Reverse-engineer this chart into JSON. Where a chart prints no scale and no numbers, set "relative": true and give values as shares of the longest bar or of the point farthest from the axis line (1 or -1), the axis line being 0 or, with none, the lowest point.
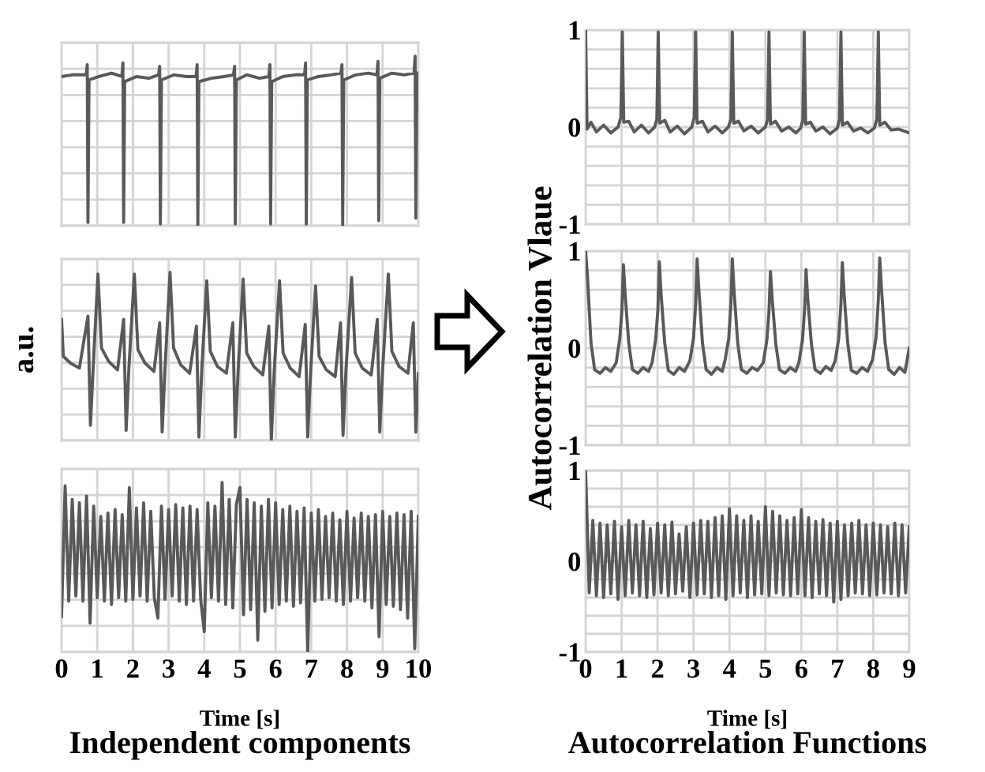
{
  "chart_data": [
    {
      "type": "line",
      "relative": true,
      "color": "#595959",
      "xlim": [
        0,
        10
      ],
      "xticks": [
        0,
        1,
        2,
        3,
        4,
        5,
        6,
        7,
        8,
        9,
        10
      ],
      "grid": true,
      "tick_labels": false,
      "x": [
        0,
        0.3,
        0.69,
        0.72,
        0.74,
        0.77,
        1.05,
        1.4,
        1.69,
        1.72,
        1.74,
        1.77,
        2.1,
        2.45,
        2.72,
        2.75,
        2.77,
        2.8,
        3.15,
        3.5,
        3.77,
        3.8,
        3.82,
        3.85,
        4.2,
        4.55,
        4.82,
        4.85,
        4.87,
        4.9,
        5.2,
        5.55,
        5.81,
        5.84,
        5.86,
        5.89,
        6.2,
        6.55,
        6.81,
        6.84,
        6.86,
        6.89,
        7.2,
        7.55,
        7.83,
        7.86,
        7.88,
        7.91,
        8.25,
        8.6,
        8.84,
        8.87,
        8.89,
        8.92,
        9.25,
        9.6,
        9.88,
        9.91,
        9.93,
        9.96,
        10
      ],
      "values": [
        0.88,
        0.89,
        0.89,
        0.95,
        0.02,
        0.86,
        0.88,
        0.9,
        0.88,
        0.96,
        0.02,
        0.85,
        0.88,
        0.87,
        0.89,
        0.94,
        0.01,
        0.86,
        0.89,
        0.88,
        0.88,
        0.95,
        0,
        0.85,
        0.87,
        0.88,
        0.89,
        0.94,
        0.01,
        0.86,
        0.89,
        0.87,
        0.88,
        0.95,
        0.01,
        0.85,
        0.88,
        0.89,
        0.89,
        0.96,
        0.01,
        0.86,
        0.88,
        0.89,
        0.9,
        0.95,
        0,
        0.86,
        0.89,
        0.9,
        0.89,
        0.97,
        0.03,
        0.87,
        0.9,
        0.89,
        0.9,
        1,
        0.045,
        0.88,
        0.9
      ]
    },
    {
      "type": "line",
      "relative": true,
      "color": "#595959",
      "xlim": [
        0,
        10
      ],
      "xticks": [
        0,
        1,
        2,
        3,
        4,
        5,
        6,
        7,
        8,
        9,
        10
      ],
      "grid": true,
      "tick_labels": false,
      "ylabel": "a.u.",
      "x": [
        0,
        0.05,
        0.25,
        0.5,
        0.74,
        0.81,
        0.89,
        1.02,
        1.12,
        1.32,
        1.57,
        1.74,
        1.81,
        1.89,
        2.04,
        2.14,
        2.34,
        2.59,
        2.75,
        2.82,
        2.9,
        3.04,
        3.14,
        3.34,
        3.59,
        3.78,
        3.85,
        3.93,
        4.07,
        4.17,
        4.37,
        4.62,
        4.8,
        4.87,
        4.95,
        5.09,
        5.19,
        5.39,
        5.64,
        5.81,
        5.88,
        5.96,
        6.11,
        6.21,
        6.41,
        6.66,
        6.83,
        6.9,
        6.98,
        7.12,
        7.22,
        7.42,
        7.67,
        7.82,
        7.89,
        7.97,
        8.13,
        8.23,
        8.43,
        8.68,
        8.85,
        8.92,
        9,
        9.16,
        9.26,
        9.46,
        9.71,
        9.86,
        9.93,
        10
      ],
      "values": [
        0.72,
        0.5,
        0.46,
        0.43,
        0.74,
        0.09,
        0.45,
        0.99,
        0.55,
        0.47,
        0.42,
        0.72,
        0.06,
        0.44,
        0.99,
        0.54,
        0.46,
        0.41,
        0.7,
        0.05,
        0.43,
        1,
        0.55,
        0.45,
        0.4,
        0.68,
        0.02,
        0.42,
        0.95,
        0.53,
        0.44,
        0.4,
        0.7,
        0.02,
        0.42,
        0.96,
        0.52,
        0.44,
        0.39,
        0.68,
        0,
        0.41,
        0.95,
        0.52,
        0.43,
        0.38,
        0.69,
        0.02,
        0.4,
        0.92,
        0.5,
        0.42,
        0.38,
        0.7,
        0.03,
        0.41,
        0.97,
        0.52,
        0.43,
        0.39,
        0.72,
        0.05,
        0.42,
        0.99,
        0.53,
        0.44,
        0.4,
        0.7,
        0.05,
        0.4
      ]
    },
    {
      "type": "line",
      "relative": true,
      "color": "#595959",
      "xlim": [
        0,
        10
      ],
      "xticks": [
        0,
        1,
        2,
        3,
        4,
        5,
        6,
        7,
        8,
        9,
        10
      ],
      "grid": true,
      "tick_labels": "x",
      "xlabel": "Time [s]",
      "annotations": [
        "Independent components"
      ],
      "x": [
        0,
        0.1,
        0.2,
        0.3,
        0.4,
        0.5,
        0.6,
        0.7,
        0.8,
        0.9,
        1,
        1.1,
        1.2,
        1.3,
        1.4,
        1.5,
        1.6,
        1.7,
        1.8,
        1.9,
        2,
        2.1,
        2.2,
        2.3,
        2.4,
        2.5,
        2.6,
        2.7,
        2.8,
        2.9,
        3,
        3.1,
        3.2,
        3.3,
        3.4,
        3.5,
        3.6,
        3.7,
        3.8,
        3.9,
        4,
        4.1,
        4.2,
        4.3,
        4.4,
        4.5,
        4.6,
        4.7,
        4.8,
        4.9,
        5,
        5.1,
        5.2,
        5.3,
        5.4,
        5.5,
        5.6,
        5.7,
        5.8,
        5.9,
        6,
        6.1,
        6.2,
        6.3,
        6.4,
        6.5,
        6.6,
        6.7,
        6.8,
        6.9,
        7,
        7.1,
        7.2,
        7.3,
        7.4,
        7.5,
        7.6,
        7.7,
        7.8,
        7.9,
        8,
        8.1,
        8.2,
        8.3,
        8.4,
        8.5,
        8.6,
        8.7,
        8.8,
        8.9,
        9,
        9.1,
        9.2,
        9.3,
        9.4,
        9.5,
        9.6,
        9.7,
        9.8,
        9.9,
        10
      ],
      "values": [
        0.21,
        0.98,
        0.3,
        0.9,
        0.33,
        0.88,
        0.3,
        0.92,
        0.17,
        0.86,
        0.32,
        0.8,
        0.3,
        0.82,
        0.28,
        0.84,
        0.32,
        0.81,
        0.3,
        0.97,
        0.31,
        0.85,
        0.33,
        0.88,
        0.3,
        0.83,
        0.32,
        0.2,
        0.86,
        0.31,
        0.84,
        0.33,
        0.87,
        0.3,
        0.85,
        0.28,
        0.86,
        0.3,
        0.84,
        0.31,
        0.12,
        0.88,
        0.32,
        0.86,
        0.3,
        1,
        0.28,
        0.9,
        0.26,
        0.87,
        0.97,
        0.22,
        0.9,
        0.25,
        0.88,
        0.07,
        0.86,
        0.24,
        0.9,
        0.26,
        0.88,
        0.28,
        0.84,
        0.3,
        0.86,
        0.27,
        0.83,
        0.29,
        0.85,
        0,
        0.82,
        0.3,
        0.84,
        0.31,
        0.8,
        0.32,
        0.82,
        0.3,
        0.78,
        0.28,
        0.83,
        0.3,
        0.79,
        0.32,
        0.82,
        0.3,
        0.8,
        0.26,
        0.81,
        0.09,
        0.83,
        0.28,
        0.8,
        0.27,
        0.82,
        0.25,
        0.81,
        0.2,
        0.83,
        0.02,
        0.8
      ]
    },
    {
      "type": "line",
      "color": "#595959",
      "xlim": [
        0,
        9
      ],
      "xticks": [
        0,
        1,
        2,
        3,
        4,
        5,
        6,
        7,
        8,
        9
      ],
      "ylim": [
        -1,
        1
      ],
      "yticks": [
        -1,
        {
          "value": -0.8,
          "label": null
        },
        {
          "value": -0.6,
          "label": null
        },
        {
          "value": -0.4,
          "label": null
        },
        {
          "value": -0.2,
          "label": null
        },
        0,
        {
          "value": 0.2,
          "label": null
        },
        {
          "value": 0.4,
          "label": null
        },
        {
          "value": 0.6,
          "label": null
        },
        {
          "value": 0.8,
          "label": null
        },
        1
      ],
      "grid": true,
      "tick_labels": "y",
      "x": [
        0,
        0.04,
        0.15,
        0.3,
        0.5,
        0.7,
        0.9,
        0.98,
        1.02,
        1.06,
        1.2,
        1.35,
        1.55,
        1.75,
        1.92,
        1.98,
        2.02,
        2.06,
        2.2,
        2.35,
        2.55,
        2.75,
        2.95,
        3.02,
        3.06,
        3.1,
        3.25,
        3.4,
        3.6,
        3.8,
        3.97,
        4.04,
        4.08,
        4.12,
        4.25,
        4.4,
        4.6,
        4.8,
        5,
        5.06,
        5.1,
        5.14,
        5.28,
        5.45,
        5.65,
        5.85,
        5.98,
        6.04,
        6.08,
        6.12,
        6.25,
        6.4,
        6.6,
        6.8,
        7,
        7.06,
        7.1,
        7.14,
        7.28,
        7.45,
        7.65,
        7.85,
        8.03,
        8.1,
        8.14,
        8.18,
        8.32,
        8.5,
        8.7,
        9
      ],
      "values": [
        1,
        -0.02,
        0.05,
        -0.05,
        0.02,
        -0.06,
        0,
        0.1,
        0.98,
        0.05,
        0.06,
        -0.05,
        0.02,
        -0.06,
        0,
        0.08,
        0.98,
        0.04,
        0.07,
        -0.05,
        0.01,
        -0.07,
        0,
        0.1,
        0.98,
        0.04,
        0.06,
        -0.05,
        0.01,
        -0.06,
        0,
        0.08,
        0.98,
        0.04,
        0.06,
        -0.04,
        0.01,
        -0.06,
        0,
        0.08,
        0.98,
        0.03,
        0.06,
        -0.04,
        0,
        -0.06,
        -0.01,
        0.07,
        0.98,
        0.03,
        0.05,
        -0.04,
        0,
        -0.07,
        -0.01,
        0.08,
        0.98,
        0.02,
        0.05,
        -0.04,
        -0.01,
        -0.06,
        -0.01,
        0.08,
        0.98,
        0.02,
        0.05,
        -0.03,
        -0.02,
        -0.06
      ]
    },
    {
      "type": "line",
      "color": "#595959",
      "xlim": [
        0,
        9
      ],
      "xticks": [
        0,
        1,
        2,
        3,
        4,
        5,
        6,
        7,
        8,
        9
      ],
      "ylim": [
        -1,
        1
      ],
      "yticks": [
        -1,
        {
          "value": -0.8,
          "label": null
        },
        {
          "value": -0.6,
          "label": null
        },
        {
          "value": -0.4,
          "label": null
        },
        {
          "value": -0.2,
          "label": null
        },
        0,
        {
          "value": 0.2,
          "label": null
        },
        {
          "value": 0.4,
          "label": null
        },
        {
          "value": 0.6,
          "label": null
        },
        {
          "value": 0.8,
          "label": null
        },
        1
      ],
      "grid": true,
      "tick_labels": "y",
      "ylabel": "Autocorrelation Vlaue",
      "x": [
        0,
        0.05,
        0.15,
        0.25,
        0.4,
        0.55,
        0.7,
        0.85,
        0.95,
        1.01,
        1.05,
        1.1,
        1.2,
        1.3,
        1.45,
        1.6,
        1.75,
        1.85,
        1.95,
        2.01,
        2.05,
        2.1,
        2.2,
        2.3,
        2.45,
        2.6,
        2.75,
        2.9,
        3,
        3.06,
        3.1,
        3.15,
        3.25,
        3.35,
        3.5,
        3.65,
        3.8,
        3.88,
        3.98,
        4.04,
        4.08,
        4.13,
        4.23,
        4.33,
        4.48,
        4.63,
        4.78,
        4.94,
        5.04,
        5.1,
        5.14,
        5.19,
        5.29,
        5.39,
        5.54,
        5.69,
        5.84,
        5.93,
        6.03,
        6.09,
        6.13,
        6.18,
        6.28,
        6.38,
        6.53,
        6.68,
        6.83,
        6.94,
        7.04,
        7.1,
        7.14,
        7.19,
        7.29,
        7.39,
        7.54,
        7.69,
        7.84,
        7.98,
        8.08,
        8.14,
        8.18,
        8.23,
        8.33,
        8.43,
        8.58,
        8.73,
        8.88,
        9
      ],
      "values": [
        1,
        0.74,
        0.05,
        -0.22,
        -0.26,
        -0.2,
        -0.24,
        -0.15,
        0.1,
        0.4,
        0.86,
        0.55,
        0.05,
        -0.22,
        -0.26,
        -0.2,
        -0.24,
        -0.15,
        0.1,
        0.4,
        0.89,
        0.55,
        0.05,
        -0.23,
        -0.27,
        -0.2,
        -0.24,
        -0.13,
        0.1,
        0.45,
        0.92,
        0.6,
        0.05,
        -0.22,
        -0.27,
        -0.2,
        -0.24,
        -0.12,
        0.1,
        0.45,
        0.92,
        0.58,
        0.05,
        -0.22,
        -0.26,
        -0.2,
        -0.23,
        -0.15,
        0.08,
        0.38,
        0.79,
        0.5,
        0.04,
        -0.22,
        -0.26,
        -0.2,
        -0.24,
        -0.15,
        0.08,
        0.4,
        0.81,
        0.5,
        0.04,
        -0.22,
        -0.26,
        -0.19,
        -0.23,
        -0.13,
        0.1,
        0.45,
        0.88,
        0.55,
        0.05,
        -0.23,
        -0.26,
        -0.2,
        -0.24,
        -0.12,
        0.12,
        0.5,
        0.93,
        0.6,
        0.05,
        -0.22,
        -0.27,
        -0.2,
        -0.25,
        0
      ]
    },
    {
      "type": "line",
      "color": "#595959",
      "xlim": [
        0,
        9
      ],
      "xticks": [
        0,
        1,
        2,
        3,
        4,
        5,
        6,
        7,
        8,
        9
      ],
      "ylim": [
        -1,
        1
      ],
      "yticks": [
        -1,
        {
          "value": -0.8,
          "label": null
        },
        {
          "value": -0.6,
          "label": null
        },
        {
          "value": -0.4,
          "label": null
        },
        {
          "value": -0.2,
          "label": null
        },
        0,
        {
          "value": 0.2,
          "label": null
        },
        {
          "value": 0.4,
          "label": null
        },
        {
          "value": 0.6,
          "label": null
        },
        {
          "value": 0.8,
          "label": null
        },
        1
      ],
      "grid": true,
      "xlabel": "Time [s]",
      "annotations": [
        "Autocorrelation Functions"
      ],
      "x": [
        0,
        0.1,
        0.2,
        0.3,
        0.4,
        0.5,
        0.6,
        0.7,
        0.8,
        0.9,
        1,
        1.1,
        1.2,
        1.3,
        1.4,
        1.5,
        1.6,
        1.7,
        1.8,
        1.9,
        2,
        2.1,
        2.2,
        2.3,
        2.4,
        2.5,
        2.6,
        2.7,
        2.8,
        2.9,
        3,
        3.1,
        3.2,
        3.3,
        3.4,
        3.5,
        3.6,
        3.7,
        3.8,
        3.9,
        4,
        4.1,
        4.2,
        4.3,
        4.4,
        4.5,
        4.6,
        4.7,
        4.8,
        4.9,
        5,
        5.1,
        5.2,
        5.3,
        5.4,
        5.5,
        5.6,
        5.7,
        5.8,
        5.9,
        6,
        6.1,
        6.2,
        6.3,
        6.4,
        6.5,
        6.6,
        6.7,
        6.8,
        6.9,
        7,
        7.1,
        7.2,
        7.3,
        7.4,
        7.5,
        7.6,
        7.7,
        7.8,
        7.9,
        8,
        8.1,
        8.2,
        8.3,
        8.4,
        8.5,
        8.6,
        8.7,
        8.8,
        8.9,
        9
      ],
      "values": [
        1,
        -0.35,
        0.45,
        -0.38,
        0.42,
        -0.4,
        0.4,
        -0.36,
        0.44,
        -0.42,
        0.38,
        -0.38,
        0.45,
        -0.35,
        0.4,
        -0.38,
        0.44,
        -0.4,
        0.36,
        -0.37,
        0.42,
        -0.35,
        0.4,
        -0.38,
        0.43,
        -0.36,
        0.3,
        -0.33,
        0.38,
        -0.4,
        0.42,
        -0.37,
        0.45,
        -0.36,
        0.44,
        -0.4,
        0.48,
        -0.38,
        0.5,
        -0.42,
        0.58,
        -0.38,
        0.5,
        -0.35,
        0.45,
        -0.4,
        0.5,
        -0.37,
        0.44,
        -0.36,
        0.6,
        -0.38,
        0.55,
        -0.35,
        0.5,
        -0.37,
        0.45,
        -0.38,
        0.48,
        -0.36,
        0.57,
        -0.38,
        0.48,
        -0.4,
        0.44,
        -0.36,
        0.46,
        -0.38,
        0.42,
        -0.45,
        0.44,
        -0.42,
        0.4,
        -0.38,
        0.42,
        -0.35,
        0.45,
        -0.36,
        0.4,
        -0.38,
        0.42,
        -0.37,
        0.4,
        -0.35,
        0.38,
        -0.36,
        0.42,
        -0.38,
        0.4,
        -0.35,
        0.38
      ]
    }
  ]
}
